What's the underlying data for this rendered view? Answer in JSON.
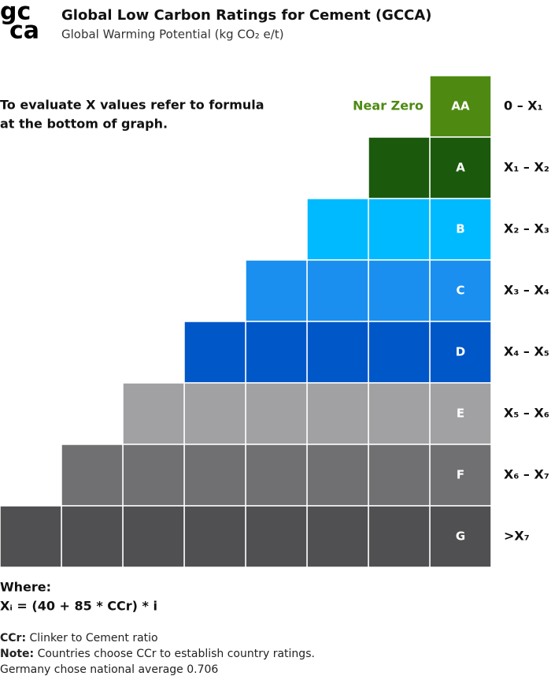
{
  "header": {
    "logo": [
      "gc",
      "ca"
    ],
    "title": "Global Low Carbon Ratings for Cement (GCCA)",
    "subtitle": "Global Warming Potential (kg CO₂ e/t)"
  },
  "instruction": [
    "To evaluate X values refer to formula",
    "at the bottom of graph."
  ],
  "near_zero": "Near Zero",
  "ratings": [
    {
      "grade": "AA",
      "range": "0 – X₁",
      "color": "#4e8a12"
    },
    {
      "grade": "A",
      "range": "X₁ – X₂",
      "color": "#1b5a0c"
    },
    {
      "grade": "B",
      "range": "X₂ – X₃",
      "color": "#00baff"
    },
    {
      "grade": "C",
      "range": "X₃ – X₄",
      "color": "#1a8ff0"
    },
    {
      "grade": "D",
      "range": "X₄ – X₅",
      "color": "#0057c8"
    },
    {
      "grade": "E",
      "range": "X₅ – X₆",
      "color": "#a1a1a3"
    },
    {
      "grade": "F",
      "range": "X₆ – X₇",
      "color": "#707072"
    },
    {
      "grade": "G",
      "range": ">X₇",
      "color": "#505052"
    }
  ],
  "where": "Where:",
  "formula": "Xᵢ = (40 + 85 * CCr) * i",
  "notes": [
    {
      "term": "CCr:",
      "text": " Clinker to Cement ratio"
    },
    {
      "term": "Note:",
      "text": " Countries choose CCr to establish country ratings."
    }
  ],
  "footer": "Germany chose national average 0.706"
}
